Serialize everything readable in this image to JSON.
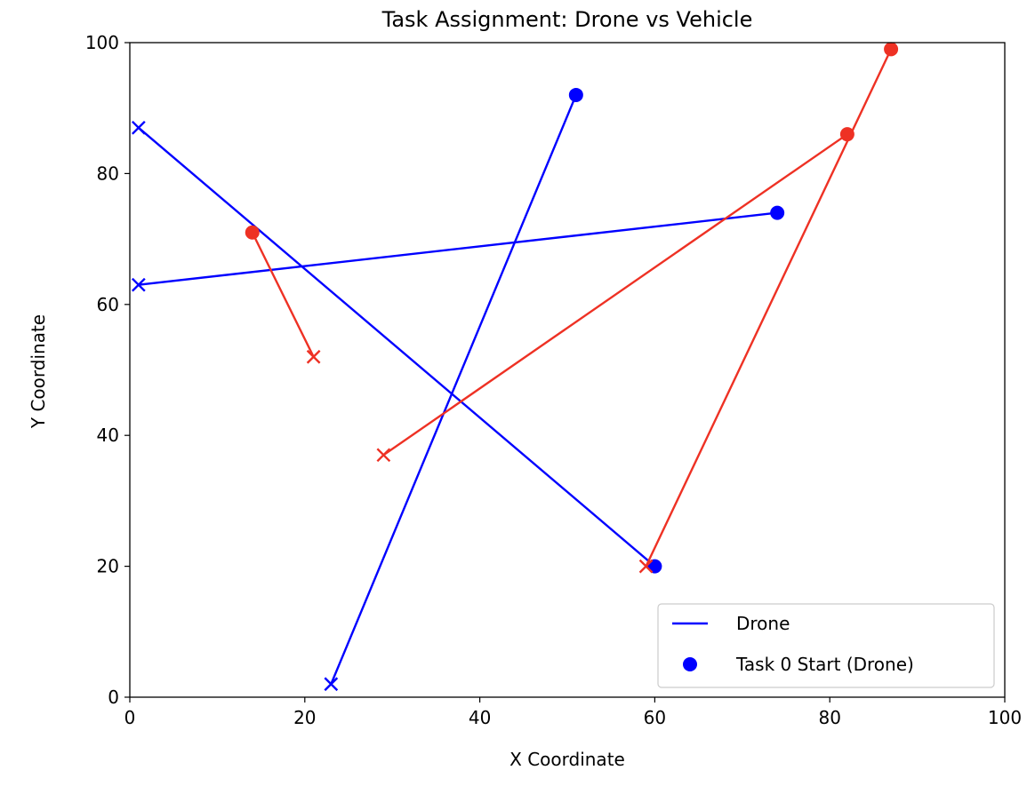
{
  "chart_data": {
    "type": "line",
    "title": "Task Assignment: Drone vs Vehicle",
    "xlabel": "X Coordinate",
    "ylabel": "Y Coordinate",
    "xlim": [
      0,
      100
    ],
    "ylim": [
      0,
      100
    ],
    "xticks": [
      "0",
      "20",
      "40",
      "60",
      "80",
      "100"
    ],
    "yticks": [
      "0",
      "20",
      "40",
      "60",
      "80",
      "100"
    ],
    "grid": false,
    "legend_position": "lower-right",
    "colors": {
      "drone": "#0000ff",
      "vehicle": "#ee3124"
    },
    "segments": [
      {
        "group": "drone",
        "start": [
          51,
          92
        ],
        "end": [
          23,
          2
        ]
      },
      {
        "group": "drone",
        "start": [
          74,
          74
        ],
        "end": [
          1,
          63
        ]
      },
      {
        "group": "drone",
        "start": [
          60,
          20
        ],
        "end": [
          1,
          87
        ]
      },
      {
        "group": "vehicle",
        "start": [
          87,
          99
        ],
        "end": [
          59,
          20
        ]
      },
      {
        "group": "vehicle",
        "start": [
          82,
          86
        ],
        "end": [
          29,
          37
        ]
      },
      {
        "group": "vehicle",
        "start": [
          14,
          71
        ],
        "end": [
          21,
          52
        ]
      }
    ],
    "legend": [
      {
        "label": "Drone",
        "marker": "line",
        "color": "#0000ff"
      },
      {
        "label": "Task 0 Start (Drone)",
        "marker": "dot",
        "color": "#0000ff"
      }
    ]
  }
}
